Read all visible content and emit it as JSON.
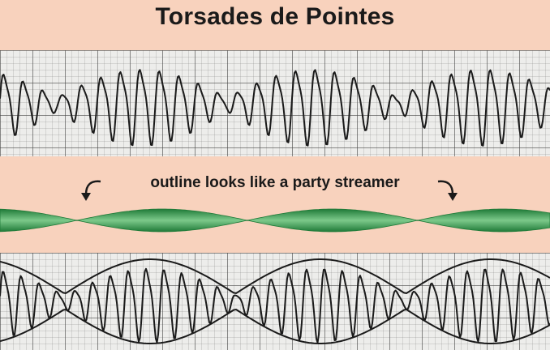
{
  "title": "Torsades de Pointes",
  "caption": "outline looks like a party streamer",
  "colors": {
    "background": "#f8d2bd",
    "ribbon": "#2e9a4a",
    "trace": "#1a1a1a"
  }
}
